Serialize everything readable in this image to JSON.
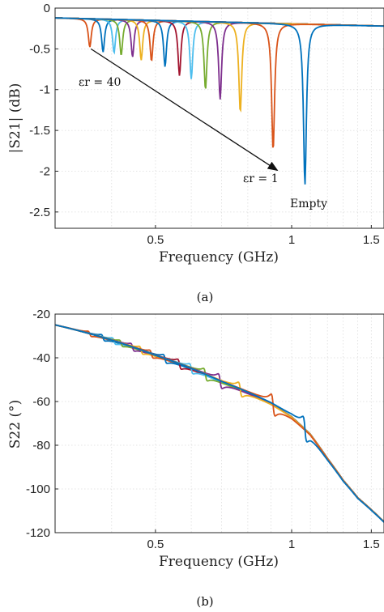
{
  "figure": {
    "caption_a": "(a)",
    "caption_b": "(b)"
  },
  "colors": [
    "#0072BD",
    "#D95319",
    "#EDB120",
    "#7E2F8E",
    "#77AC30",
    "#4DBEEE",
    "#A2142F",
    "#0072BD",
    "#D95319",
    "#EDB120",
    "#7E2F8E",
    "#77AC30",
    "#4DBEEE"
  ],
  "chart_data": [
    {
      "id": "a",
      "type": "line",
      "xlabel": "Frequency (GHz)",
      "ylabel": "|S21| (dB)",
      "xscale": "log",
      "xlim": [
        0.3,
        1.6
      ],
      "ylim": [
        -2.7,
        0
      ],
      "xticks": [
        0.5,
        1,
        1.5
      ],
      "xticklabels": [
        "0.5",
        "1",
        "1.5"
      ],
      "yticks": [
        0,
        -0.5,
        -1,
        -1.5,
        -2,
        -2.5
      ],
      "yticklabels": [
        "0",
        "-0.5",
        "-1",
        "-1.5",
        "-2",
        "-2.5"
      ],
      "grid": true,
      "baseline": {
        "y_start": -0.12,
        "y_end": -0.22
      },
      "resonances": [
        {
          "f0": 1.07,
          "depth": -2.17,
          "color": "#0072BD"
        },
        {
          "f0": 0.91,
          "depth": -1.75,
          "color": "#D95319"
        },
        {
          "f0": 0.77,
          "depth": -1.28,
          "color": "#EDB120"
        },
        {
          "f0": 0.695,
          "depth": -1.12,
          "color": "#7E2F8E"
        },
        {
          "f0": 0.645,
          "depth": -1.0,
          "color": "#77AC30"
        },
        {
          "f0": 0.6,
          "depth": -0.87,
          "color": "#4DBEEE"
        },
        {
          "f0": 0.565,
          "depth": -0.83,
          "color": "#A2142F"
        },
        {
          "f0": 0.525,
          "depth": -0.72,
          "color": "#0072BD"
        },
        {
          "f0": 0.49,
          "depth": -0.65,
          "color": "#D95319"
        },
        {
          "f0": 0.465,
          "depth": -0.64,
          "color": "#EDB120"
        },
        {
          "f0": 0.445,
          "depth": -0.6,
          "color": "#7E2F8E"
        },
        {
          "f0": 0.42,
          "depth": -0.58,
          "color": "#77AC30"
        },
        {
          "f0": 0.405,
          "depth": -0.55,
          "color": "#4DBEEE"
        },
        {
          "f0": 0.383,
          "depth": -0.54,
          "color": "#0072BD"
        },
        {
          "f0": 0.358,
          "depth": -0.48,
          "color": "#D95319"
        }
      ],
      "annotations": {
        "eps_high": "εr = 40",
        "eps_low": "εr = 1",
        "empty": "Empty"
      },
      "arrow": {
        "from": [
          0.36,
          -0.5
        ],
        "to": [
          0.93,
          -1.99
        ]
      }
    },
    {
      "id": "b",
      "type": "line",
      "xlabel": "Frequency (GHz)",
      "ylabel": "S22 (°)",
      "xscale": "log",
      "xlim": [
        0.3,
        1.6
      ],
      "ylim": [
        -120,
        -20
      ],
      "xticks": [
        0.5,
        1,
        1.5
      ],
      "xticklabels": [
        "0.5",
        "1",
        "1.5"
      ],
      "yticks": [
        -20,
        -40,
        -60,
        -80,
        -100,
        -120
      ],
      "yticklabels": [
        "-20",
        "-40",
        "-60",
        "-80",
        "-100",
        "-120"
      ],
      "grid": true,
      "line": {
        "x": [
          0.3,
          0.4,
          0.5,
          0.6,
          0.7,
          0.8,
          0.9,
          1.0,
          1.1,
          1.2,
          1.3,
          1.4,
          1.6
        ],
        "y": [
          -25,
          -32,
          -39,
          -45,
          -51,
          -56,
          -61,
          -67,
          -75,
          -86,
          -96,
          -104,
          -115
        ]
      },
      "resonances": [
        {
          "f0": 1.07,
          "amp": 10,
          "color": "#0072BD"
        },
        {
          "f0": 0.91,
          "amp": 9,
          "color": "#D95319"
        },
        {
          "f0": 0.77,
          "amp": 6,
          "color": "#EDB120"
        },
        {
          "f0": 0.695,
          "amp": 6,
          "color": "#7E2F8E"
        },
        {
          "f0": 0.645,
          "amp": 5,
          "color": "#77AC30"
        },
        {
          "f0": 0.6,
          "amp": 4,
          "color": "#4DBEEE"
        },
        {
          "f0": 0.565,
          "amp": 4,
          "color": "#A2142F"
        },
        {
          "f0": 0.525,
          "amp": 3.5,
          "color": "#0072BD"
        },
        {
          "f0": 0.49,
          "amp": 3,
          "color": "#D95319"
        },
        {
          "f0": 0.465,
          "amp": 3,
          "color": "#EDB120"
        },
        {
          "f0": 0.445,
          "amp": 3,
          "color": "#7E2F8E"
        },
        {
          "f0": 0.42,
          "amp": 2.5,
          "color": "#77AC30"
        },
        {
          "f0": 0.405,
          "amp": 2.5,
          "color": "#4DBEEE"
        },
        {
          "f0": 0.383,
          "amp": 2.5,
          "color": "#0072BD"
        },
        {
          "f0": 0.358,
          "amp": 2,
          "color": "#D95319"
        }
      ]
    }
  ]
}
